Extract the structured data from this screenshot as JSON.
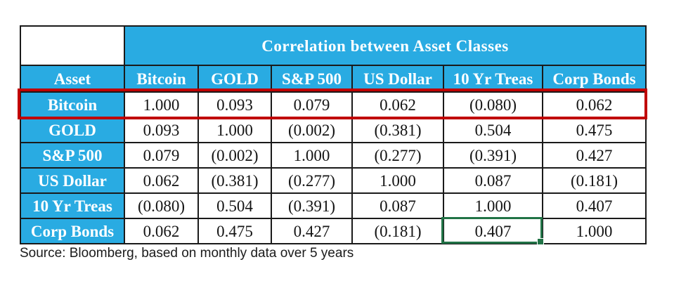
{
  "title": "Correlation between Asset Classes",
  "source_note": "Source: Bloomberg, based on monthly data over 5 years",
  "colors": {
    "header_fill": "#29ABE2",
    "header_text": "#FFFFFF",
    "grid_border": "#1A1A1A",
    "value_text": "#141414",
    "highlight_box_red": "#C00000",
    "selection_box_green": "#217346"
  },
  "chart_data": {
    "type": "table",
    "title": "Correlation between Asset Classes",
    "corner_header": "Asset",
    "columns": [
      "Bitcoin",
      "GOLD",
      "S&P 500",
      "US Dollar",
      "10 Yr Treas",
      "Corp Bonds"
    ],
    "rows": [
      {
        "label": "Bitcoin",
        "values": [
          "1.000",
          "0.093",
          "0.079",
          "0.062",
          "(0.080)",
          "0.062"
        ]
      },
      {
        "label": "GOLD",
        "values": [
          "0.093",
          "1.000",
          "(0.002)",
          "(0.381)",
          "0.504",
          "0.475"
        ]
      },
      {
        "label": "S&P 500",
        "values": [
          "0.079",
          "(0.002)",
          "1.000",
          "(0.277)",
          "(0.391)",
          "0.427"
        ]
      },
      {
        "label": "US Dollar",
        "values": [
          "0.062",
          "(0.381)",
          "(0.277)",
          "1.000",
          "0.087",
          "(0.181)"
        ]
      },
      {
        "label": "10 Yr Treas",
        "values": [
          "(0.080)",
          "0.504",
          "(0.391)",
          "0.087",
          "1.000",
          "0.407"
        ]
      },
      {
        "label": "Corp Bonds",
        "values": [
          "0.062",
          "0.475",
          "0.427",
          "(0.181)",
          "0.407",
          "1.000"
        ]
      }
    ],
    "annotations": {
      "highlighted_row": "Bitcoin",
      "highlight_style": "thick red rectangle around entire Bitcoin row",
      "selected_cell": {
        "row": "Corp Bonds",
        "column": "10 Yr Treas",
        "value": "0.407",
        "style": "green spreadsheet selection outline with fill handle"
      }
    },
    "layout_hints": {
      "grid": "black 2px cell borders",
      "value_format": "negatives in parentheses"
    }
  }
}
